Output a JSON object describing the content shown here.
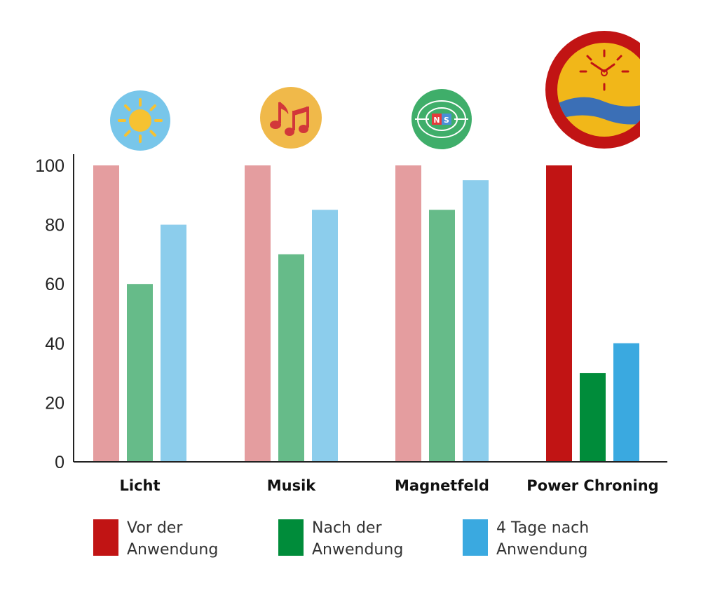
{
  "chart_data": {
    "type": "bar",
    "categories": [
      "Licht",
      "Musik",
      "Magnetfeld",
      "Power Chroning"
    ],
    "series": [
      {
        "name": "Vor der Anwendung",
        "values": [
          100,
          100,
          100,
          100
        ],
        "color": "#c11414",
        "faded_color": "#e49d9f"
      },
      {
        "name": "Nach der Anwendung",
        "values": [
          60,
          70,
          85,
          30
        ],
        "color": "#008c3a",
        "faded_color": "#66bb89"
      },
      {
        "name": "4 Tage nach Anwendung",
        "values": [
          80,
          85,
          95,
          40
        ],
        "color": "#3aa9e0",
        "faded_color": "#8ccdec"
      }
    ],
    "highlighted_category": "Power Chroning",
    "yticks": [
      0,
      20,
      40,
      60,
      80,
      100
    ],
    "ylim": [
      0,
      100
    ],
    "grid": false,
    "legend_position": "bottom",
    "category_icons": [
      "sun-icon",
      "music-notes-icon",
      "magnet-icon",
      "clock-sunset-icon"
    ]
  },
  "legend": {
    "items": [
      {
        "line1": "Vor der",
        "line2": "Anwendung",
        "color": "#c11414"
      },
      {
        "line1": "Nach der",
        "line2": "Anwendung",
        "color": "#008c3a"
      },
      {
        "line1": "4 Tage nach",
        "line2": "Anwendung",
        "color": "#3aa9e0"
      }
    ]
  },
  "magnet_icon": {
    "north_label": "N",
    "south_label": "S"
  }
}
